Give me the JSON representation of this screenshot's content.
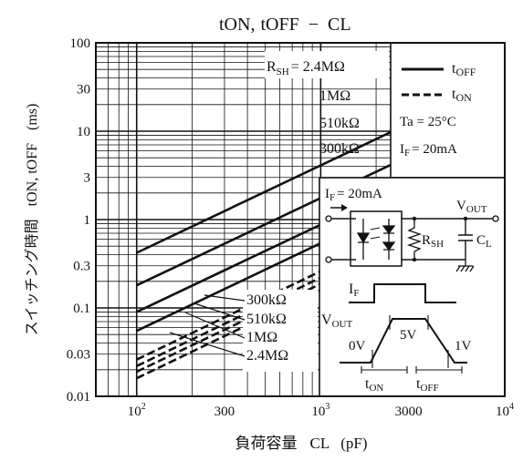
{
  "chart_data": {
    "type": "line",
    "title": {
      "t_on": "tON",
      "comma": ",",
      "t_off": "tOFF",
      "dash": "−",
      "c_l": "CL"
    },
    "ylabel": {
      "jp": "スイッチング時間",
      "t_on": "tON",
      "comma": ",",
      "t_off": "tOFF",
      "unit": "(ms)"
    },
    "xlabel": {
      "jp": "負荷容量",
      "c_l": "CL",
      "unit": "(pF)"
    },
    "x_scale": "log",
    "y_scale": "log",
    "xlim": [
      60,
      10000
    ],
    "ylim": [
      0.01,
      100
    ],
    "grid": true,
    "x_ticks": [
      {
        "value": 100,
        "base": "10",
        "exp": "2"
      },
      {
        "value": 300,
        "label": "300"
      },
      {
        "value": 1000,
        "base": "10",
        "exp": "3"
      },
      {
        "value": 3000,
        "label": "3000"
      },
      {
        "value": 10000,
        "base": "10",
        "exp": "4"
      }
    ],
    "y_ticks": [
      {
        "value": 100,
        "label": "100"
      },
      {
        "value": 30,
        "label": "30"
      },
      {
        "value": 10,
        "label": "10"
      },
      {
        "value": 3,
        "label": "3"
      },
      {
        "value": 1,
        "label": "1"
      },
      {
        "value": 0.3,
        "label": "0.3"
      },
      {
        "value": 0.1,
        "label": "0.1"
      },
      {
        "value": 0.03,
        "label": "0.03"
      },
      {
        "value": 0.01,
        "label": "0.01"
      }
    ],
    "series": [
      {
        "name": "tOFF R_SH=2.4MΩ",
        "kind": "t_off",
        "x": [
          100,
          10000
        ],
        "y": [
          0.42,
          40
        ]
      },
      {
        "name": "tOFF R_SH=1MΩ",
        "kind": "t_off",
        "x": [
          100,
          10000
        ],
        "y": [
          0.18,
          17
        ]
      },
      {
        "name": "tOFF R_SH=510kΩ",
        "kind": "t_off",
        "x": [
          100,
          10000
        ],
        "y": [
          0.09,
          8.5
        ]
      },
      {
        "name": "tOFF R_SH=300kΩ",
        "kind": "t_off",
        "x": [
          100,
          10000
        ],
        "y": [
          0.055,
          5.3
        ]
      },
      {
        "name": "tON R_SH=300kΩ",
        "kind": "t_on",
        "x": [
          100,
          10000
        ],
        "y": [
          0.026,
          2.6
        ]
      },
      {
        "name": "tON R_SH=510kΩ",
        "kind": "t_on",
        "x": [
          100,
          10000
        ],
        "y": [
          0.022,
          2.2
        ]
      },
      {
        "name": "tON R_SH=1MΩ",
        "kind": "t_on",
        "x": [
          100,
          10000
        ],
        "y": [
          0.019,
          1.85
        ]
      },
      {
        "name": "tON R_SH=2.4MΩ",
        "kind": "t_on",
        "x": [
          100,
          10000
        ],
        "y": [
          0.016,
          1.6
        ]
      }
    ],
    "off_labels": {
      "rsh_r": "R",
      "rsh_sub": "SH",
      "rsh_val": "= 2.4MΩ",
      "l1": "1MΩ",
      "l2": "510kΩ",
      "l3": "300kΩ"
    },
    "on_labels": {
      "l1": "300kΩ",
      "l2": "510kΩ",
      "l3": "1MΩ",
      "l4": "2.4MΩ"
    },
    "legend": {
      "position": "top-right",
      "t_off_main": "t",
      "t_off_sub": "OFF",
      "t_on_main": "t",
      "t_on_sub": "ON",
      "ta": "Ta = 25°C",
      "if_main": "I",
      "if_sub": "F",
      "if_val": "= 20mA"
    },
    "circuit": {
      "if_main": "I",
      "if_sub": "F",
      "if_val": "= 20mA",
      "vout_main": "V",
      "vout_sub": "OUT",
      "rsh_main": "R",
      "rsh_sub": "SH",
      "cl_main": "C",
      "cl_sub": "L"
    },
    "timing": {
      "if_main": "I",
      "if_sub": "F",
      "vout_main": "V",
      "vout_sub": "OUT",
      "v0": "0V",
      "v5": "5V",
      "v1": "1V",
      "ton_main": "t",
      "ton_sub": "ON",
      "toff_main": "t",
      "toff_sub": "OFF"
    }
  }
}
